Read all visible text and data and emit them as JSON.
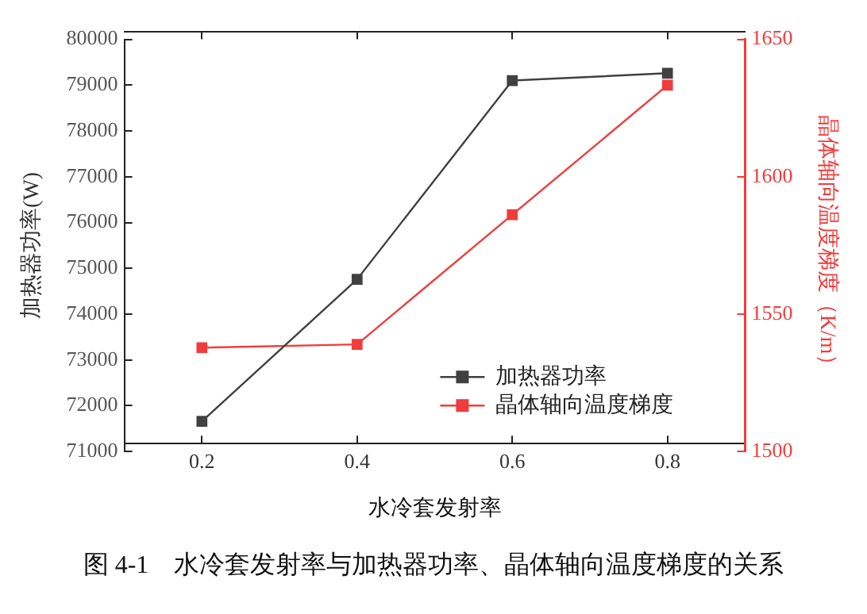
{
  "chart_data": {
    "type": "line",
    "xlabel": "水冷套发射率",
    "ylabel": "加热器功率(W)",
    "y2label": "晶体轴向温度梯度（K/m）",
    "annotations": [
      "图 4-1    水冷套发射率与加热器功率、晶体轴向温度梯度的关系"
    ],
    "x": [
      0.2,
      0.4,
      0.6,
      0.8
    ],
    "xlim": [
      0.1,
      0.9
    ],
    "xticks": [
      0.2,
      0.4,
      0.6,
      0.8
    ],
    "ylim": [
      71000,
      80000
    ],
    "yticks": [
      71000,
      72000,
      73000,
      74000,
      75000,
      76000,
      77000,
      78000,
      79000,
      80000
    ],
    "y2lim": [
      1500,
      1650
    ],
    "y2ticks": [
      1500,
      1550,
      1600,
      1650
    ],
    "series": [
      {
        "name": "加热器功率",
        "color": "#404040",
        "values": [
          71660,
          74760,
          79100,
          79260
        ]
      },
      {
        "name": "晶体轴向温度梯度",
        "color": "#f03c3c",
        "axis": "y2",
        "values": [
          1537.8,
          1539,
          1586.2,
          1633.3
        ]
      }
    ],
    "marker": "square",
    "line_style": "solid",
    "legend": "bottom right",
    "grid": false
  }
}
